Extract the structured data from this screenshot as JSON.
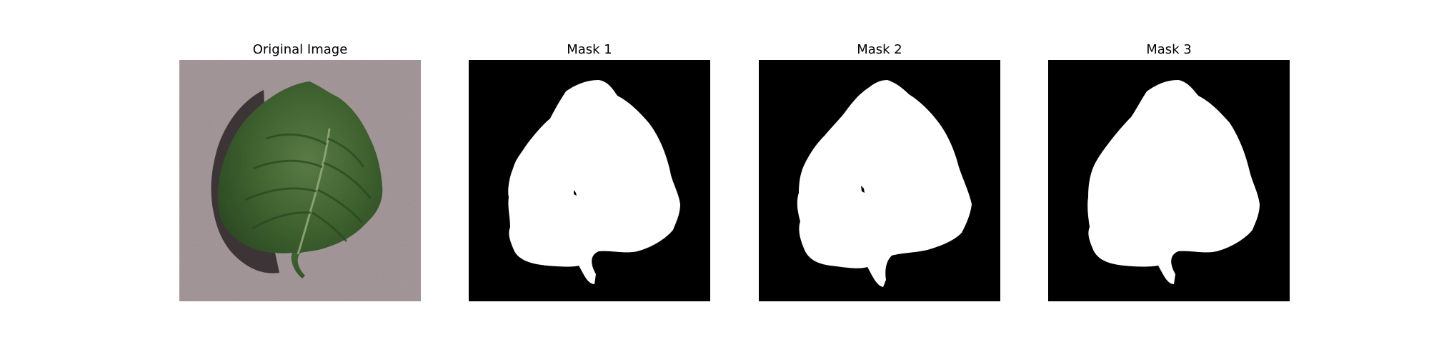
{
  "figure": {
    "panels": [
      {
        "title": "Original Image",
        "kind": "photo",
        "subject": "leaf"
      },
      {
        "title": "Mask 1",
        "kind": "mask",
        "variant": 1
      },
      {
        "title": "Mask 2",
        "kind": "mask",
        "variant": 2
      },
      {
        "title": "Mask 3",
        "kind": "mask",
        "variant": 3
      }
    ],
    "colors": {
      "background_photo": "#a89a9d",
      "leaf_dark": "#2f4f27",
      "leaf_mid": "#4a7237",
      "leaf_light": "#6f9456",
      "vein": "#98b07e",
      "shadow": "#2a2324",
      "mask_bg": "#000000",
      "mask_fg": "#ffffff"
    }
  }
}
